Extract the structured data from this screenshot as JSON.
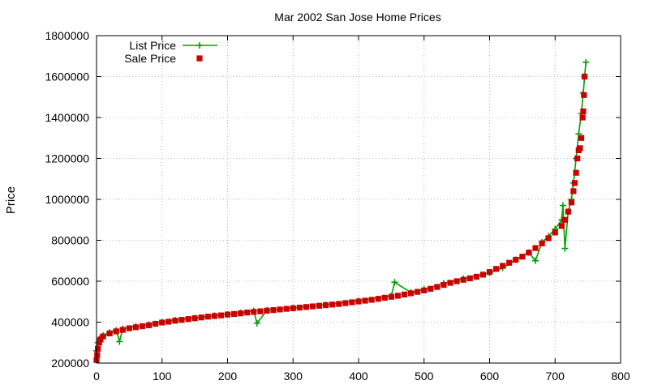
{
  "chart_data": {
    "type": "scatter",
    "title": "Mar 2002 San Jose Home Prices",
    "xlabel": "",
    "ylabel": "Price",
    "xlim": [
      0,
      800
    ],
    "ylim": [
      200000,
      1800000
    ],
    "xticks": [
      "0",
      "100",
      "200",
      "300",
      "400",
      "500",
      "600",
      "700",
      "800"
    ],
    "yticks": [
      "200000",
      "400000",
      "600000",
      "800000",
      "1000000",
      "1200000",
      "1400000",
      "1600000",
      "1800000"
    ],
    "grid": true,
    "legend_position": "top-left",
    "series": [
      {
        "name": "List Price",
        "style": "line-plus",
        "color": "#00a000",
        "points": [
          [
            0,
            260000
          ],
          [
            2,
            300000
          ],
          [
            5,
            320000
          ],
          [
            10,
            335000
          ],
          [
            20,
            350000
          ],
          [
            30,
            360000
          ],
          [
            35,
            305000
          ],
          [
            40,
            368000
          ],
          [
            60,
            378000
          ],
          [
            80,
            388000
          ],
          [
            100,
            400000
          ],
          [
            120,
            410000
          ],
          [
            150,
            420000
          ],
          [
            180,
            432000
          ],
          [
            200,
            438000
          ],
          [
            220,
            445000
          ],
          [
            240,
            455000
          ],
          [
            245,
            395000
          ],
          [
            260,
            458000
          ],
          [
            300,
            470000
          ],
          [
            350,
            485000
          ],
          [
            400,
            505000
          ],
          [
            450,
            528000
          ],
          [
            455,
            595000
          ],
          [
            480,
            545000
          ],
          [
            500,
            560000
          ],
          [
            530,
            590000
          ],
          [
            560,
            612000
          ],
          [
            600,
            640000
          ],
          [
            620,
            665000
          ],
          [
            640,
            705000
          ],
          [
            660,
            740000
          ],
          [
            670,
            700000
          ],
          [
            680,
            790000
          ],
          [
            690,
            820000
          ],
          [
            700,
            855000
          ],
          [
            710,
            900000
          ],
          [
            712,
            970000
          ],
          [
            715,
            760000
          ],
          [
            720,
            940000
          ],
          [
            725,
            1000000
          ],
          [
            728,
            1080000
          ],
          [
            732,
            1200000
          ],
          [
            736,
            1320000
          ],
          [
            740,
            1420000
          ],
          [
            743,
            1520000
          ],
          [
            745,
            1600000
          ],
          [
            747,
            1670000
          ]
        ]
      },
      {
        "name": "Sale Price",
        "style": "square",
        "color": "#cc0000",
        "points": [
          [
            0,
            215000
          ],
          [
            1,
            240000
          ],
          [
            2,
            270000
          ],
          [
            4,
            300000
          ],
          [
            6,
            315000
          ],
          [
            10,
            330000
          ],
          [
            20,
            345000
          ],
          [
            30,
            355000
          ],
          [
            40,
            362000
          ],
          [
            50,
            370000
          ],
          [
            60,
            375000
          ],
          [
            70,
            380000
          ],
          [
            80,
            385000
          ],
          [
            90,
            392000
          ],
          [
            100,
            398000
          ],
          [
            110,
            402000
          ],
          [
            120,
            407000
          ],
          [
            130,
            411000
          ],
          [
            140,
            415000
          ],
          [
            150,
            419000
          ],
          [
            160,
            423000
          ],
          [
            170,
            427000
          ],
          [
            180,
            430000
          ],
          [
            190,
            433000
          ],
          [
            200,
            437000
          ],
          [
            210,
            440000
          ],
          [
            220,
            443000
          ],
          [
            230,
            447000
          ],
          [
            240,
            450000
          ],
          [
            250,
            453000
          ],
          [
            260,
            456000
          ],
          [
            270,
            459000
          ],
          [
            280,
            462000
          ],
          [
            290,
            465000
          ],
          [
            300,
            468000
          ],
          [
            310,
            471000
          ],
          [
            320,
            474000
          ],
          [
            330,
            477000
          ],
          [
            340,
            480000
          ],
          [
            350,
            483000
          ],
          [
            360,
            486000
          ],
          [
            370,
            489000
          ],
          [
            380,
            493000
          ],
          [
            390,
            497000
          ],
          [
            400,
            501000
          ],
          [
            410,
            505000
          ],
          [
            420,
            509000
          ],
          [
            430,
            514000
          ],
          [
            440,
            519000
          ],
          [
            450,
            524000
          ],
          [
            460,
            529000
          ],
          [
            470,
            535000
          ],
          [
            480,
            541000
          ],
          [
            490,
            548000
          ],
          [
            500,
            555000
          ],
          [
            510,
            563000
          ],
          [
            520,
            572000
          ],
          [
            530,
            582000
          ],
          [
            540,
            592000
          ],
          [
            550,
            600000
          ],
          [
            560,
            607000
          ],
          [
            570,
            614000
          ],
          [
            580,
            622000
          ],
          [
            590,
            632000
          ],
          [
            600,
            645000
          ],
          [
            610,
            660000
          ],
          [
            620,
            675000
          ],
          [
            630,
            690000
          ],
          [
            640,
            705000
          ],
          [
            650,
            720000
          ],
          [
            660,
            740000
          ],
          [
            670,
            762000
          ],
          [
            680,
            785000
          ],
          [
            690,
            810000
          ],
          [
            700,
            838000
          ],
          [
            710,
            870000
          ],
          [
            715,
            900000
          ],
          [
            720,
            940000
          ],
          [
            725,
            985000
          ],
          [
            728,
            1040000
          ],
          [
            730,
            1080000
          ],
          [
            732,
            1130000
          ],
          [
            734,
            1200000
          ],
          [
            736,
            1240000
          ],
          [
            738,
            1250000
          ],
          [
            740,
            1300000
          ],
          [
            742,
            1400000
          ],
          [
            743,
            1430000
          ],
          [
            744,
            1510000
          ],
          [
            745,
            1600000
          ]
        ]
      }
    ]
  }
}
